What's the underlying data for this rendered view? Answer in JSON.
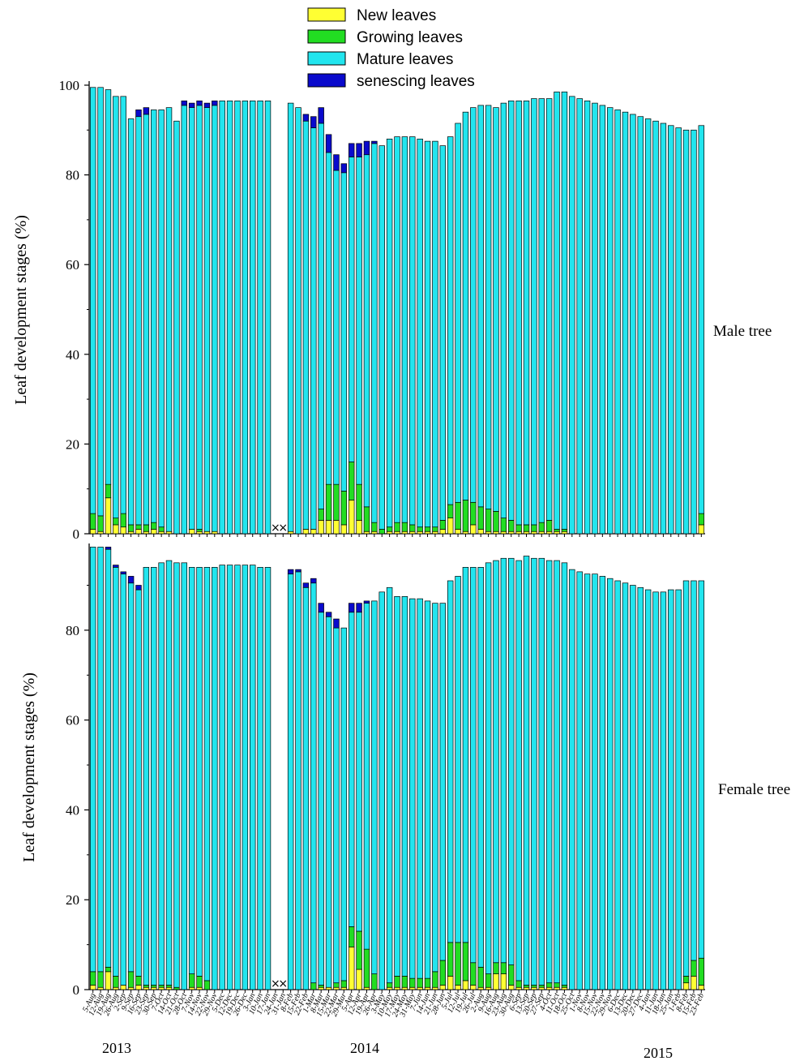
{
  "colors": {
    "new": "#ffff33",
    "growing": "#22dd22",
    "mature": "#22e5ee",
    "senescing": "#0a0acc"
  },
  "chart_data": {
    "type": "bar",
    "stacked": true,
    "legend": {
      "position": "top-center",
      "entries": [
        "New leaves",
        "Growing leaves",
        "Mature leaves",
        "senescing leaves"
      ]
    },
    "ylabel": "Leaf development stages (%)",
    "ylim": [
      0,
      100
    ],
    "yticks": [
      0,
      20,
      40,
      60,
      80,
      100
    ],
    "years": [
      "2013",
      "2014",
      "2015"
    ],
    "missing_marker": "×",
    "dates": [
      "5-Aug",
      "12-Aug",
      "19-Aug",
      "26-Aug",
      "2-Sep",
      "9-Sep",
      "16-Sep",
      "23-Sep",
      "30-Sep",
      "7-Oct",
      "14-Oct",
      "21-Oct",
      "28-Oct",
      "7-Nov",
      "14-Nov",
      "22-Nov",
      "29-Nov",
      "5-Dec",
      "12-Dec",
      "19-Dec",
      "26-Dec",
      "3-Jan",
      "10-Jan",
      "17-Jan",
      "24-Jan",
      "31-Jan",
      "8-Feb",
      "15-Feb",
      "22-Feb",
      "1-Mar",
      "8-Mar",
      "15-Mar",
      "22-Mar",
      "29-Mar",
      "5-Apr",
      "12-Apr",
      "19-Apr",
      "26-Apr",
      "3-May",
      "10-May",
      "17-May",
      "24-May",
      "31-May",
      "7-Jun",
      "14-Jun",
      "21-Jun",
      "28-Jun",
      "5-Jul",
      "12-Jul",
      "19-Jul",
      "26-Jul",
      "2-Aug",
      "9-Aug",
      "16-Aug",
      "23-Aug",
      "30-Aug",
      "6-Sep",
      "13-Sep",
      "20-Sep",
      "27-Sep",
      "4-Oct",
      "11-Oct",
      "18-Oct",
      "25-Oct",
      "1-Nov",
      "8-Nov",
      "15-Nov",
      "22-Nov",
      "29-Nov",
      "6-Dec",
      "13-Dec",
      "20-Dec",
      "27-Dec",
      "4-Jan",
      "11-Jan",
      "18-Jan",
      "25-Jan",
      "1-Feb",
      "8-Feb",
      "15-Feb",
      "23-Feb"
    ],
    "date_labels": [
      "5-Aug",
      "12-Aug",
      "19-Aug",
      "26-Aug",
      "2-Sep",
      "9-Sep",
      "16-Sep",
      "23-Sep",
      "30-Sep",
      "7-Oct",
      "14-Oct",
      "21-Oct",
      "28-Oct",
      "7-Nov",
      "14-Nov",
      "22-Nov",
      "29-Nov",
      "5-Dec",
      "12-Dec",
      "19-Dec",
      "26-Dec",
      "3-Jan",
      "10-Jan",
      "17-Jan",
      "24-Jan",
      "31-Jan",
      "8-Feb",
      "15-Feb",
      "22-Feb",
      "1-Mar",
      "8-Mar",
      "15-Mar",
      "22-Mar",
      "29-Mar",
      "5-Apr",
      "12-Apr",
      "19-Apr",
      "26-Apr",
      "3-May",
      "10-May",
      "17-May",
      "24-May",
      "31-May",
      "7-Jun",
      "14-Jun",
      "21-Jun",
      "28-Jun",
      "5-Jul",
      "12-Jul",
      "19-Jul",
      "26-Jul",
      "2-Aug",
      "9-Aug",
      "16-Aug",
      "23-Aug",
      "30-Aug",
      "6-Sep",
      "13-Sep",
      "20-Sep",
      "27-Sep",
      "4-Oct",
      "11-Oct",
      "18-Oct",
      "25-Oct",
      "1-Nov",
      "8-Nov",
      "15-Nov",
      "22-Nov",
      "29-Nov",
      "6-Dec",
      "13-Dec",
      "20-Dec",
      "27-Dec",
      "4-Jan",
      "11-Jan",
      "18-Jan",
      "25-Jan",
      "1-Feb",
      "8-Feb",
      "15-Feb",
      "23-Feb"
    ],
    "panels": [
      {
        "label": "Male tree",
        "missing": [
          24,
          25
        ],
        "series": [
          {
            "name": "New leaves",
            "values": [
              1,
              0.5,
              8,
              2,
              1.5,
              0.5,
              1,
              0.5,
              1,
              0.5,
              0.5,
              0,
              0,
              1,
              0.5,
              0.5,
              0.5,
              0,
              0,
              0,
              0,
              0,
              0,
              0,
              null,
              null,
              0.5,
              0,
              1,
              1,
              3,
              3,
              3,
              2,
              7.5,
              3,
              0.5,
              0.5,
              0,
              0.5,
              0.5,
              0.5,
              0.5,
              0.5,
              0.5,
              0.5,
              1,
              3.5,
              1,
              0.5,
              2,
              1,
              0.5,
              0.5,
              0.5,
              0.5,
              0.5,
              0.5,
              0.5,
              0.5,
              0.5,
              0.5,
              0.5,
              0,
              0,
              0,
              0,
              0,
              0,
              0,
              0,
              0,
              0,
              0,
              0,
              0,
              0,
              0,
              0,
              0,
              2
            ]
          },
          {
            "name": "Growing leaves",
            "values": [
              3.5,
              3.5,
              3,
              1.5,
              3,
              1.5,
              1,
              1.5,
              1.5,
              1,
              0,
              0,
              0,
              0,
              0.5,
              0,
              0,
              0,
              0,
              0,
              0,
              0,
              0,
              0,
              null,
              null,
              0,
              0,
              0,
              0,
              2.5,
              8,
              8,
              7.5,
              8.5,
              8,
              5.5,
              2,
              1,
              1,
              2,
              2,
              1.5,
              1,
              1,
              1,
              2,
              3,
              6,
              7,
              5,
              5,
              5,
              4.5,
              3,
              2.5,
              1.5,
              1.5,
              1.5,
              2,
              2.5,
              0.5,
              0.5,
              0,
              0,
              0,
              0,
              0,
              0,
              0,
              0,
              0,
              0,
              0,
              0,
              0,
              0,
              0,
              0,
              0,
              2.5
            ]
          },
          {
            "name": "Mature leaves",
            "values": [
              95,
              95.5,
              88,
              94,
              93,
              90.5,
              91,
              91.5,
              92,
              93,
              94.5,
              92,
              95.5,
              94,
              94.5,
              94.5,
              95,
              96.5,
              96.5,
              96.5,
              96.5,
              96.5,
              96.5,
              96.5,
              null,
              null,
              95.5,
              95,
              91,
              89.5,
              86,
              74,
              70,
              71,
              68,
              73,
              78.5,
              84.5,
              85.5,
              86.5,
              86,
              86,
              86.5,
              86.5,
              86,
              86,
              83.5,
              82,
              84.5,
              86.5,
              88,
              89.5,
              90,
              90,
              92.5,
              93.5,
              94.5,
              94.5,
              95,
              94.5,
              94,
              97.5,
              97.5,
              97.5,
              97,
              96.5,
              96,
              95.5,
              95,
              94.5,
              94,
              93.5,
              93,
              92.5,
              92,
              91.5,
              91,
              90.5,
              90,
              90,
              86.5
            ]
          },
          {
            "name": "senescing leaves",
            "values": [
              0,
              0,
              0,
              0,
              0,
              0,
              1.5,
              1.5,
              0,
              0,
              0,
              0,
              1,
              1,
              1,
              1,
              1,
              0,
              0,
              0,
              0,
              0,
              0,
              0,
              null,
              null,
              0,
              0,
              1.5,
              2.5,
              3.5,
              4,
              3.5,
              2,
              3,
              3,
              3,
              0.5,
              0,
              0,
              0,
              0,
              0,
              0,
              0,
              0,
              0,
              0,
              0,
              0,
              0,
              0,
              0,
              0,
              0,
              0,
              0,
              0,
              0,
              0,
              0,
              0,
              0,
              0,
              0,
              0,
              0,
              0,
              0,
              0,
              0,
              0,
              0,
              0,
              0,
              0,
              0,
              0,
              0,
              0,
              0
            ]
          }
        ]
      },
      {
        "label": "Female tree",
        "missing": [
          24,
          25
        ],
        "series": [
          {
            "name": "New leaves",
            "values": [
              1,
              0.5,
              4,
              0.5,
              1,
              0.5,
              1,
              0.5,
              0.5,
              0.5,
              0.5,
              0,
              0,
              0.5,
              0.5,
              0,
              0,
              0,
              0,
              0,
              0,
              0,
              0,
              0,
              null,
              null,
              0,
              0,
              0,
              0,
              0.5,
              0.5,
              0.5,
              0.5,
              9.5,
              4.5,
              0.5,
              0,
              0,
              0.5,
              0.5,
              0.5,
              0.5,
              0.5,
              0.5,
              0.5,
              1,
              3,
              1,
              2,
              1,
              0.5,
              0.5,
              3.5,
              3.5,
              1,
              0.5,
              0.5,
              0.5,
              0.5,
              0.5,
              0.5,
              0.5,
              0,
              0,
              0,
              0,
              0,
              0,
              0,
              0,
              0,
              0,
              0,
              0,
              0,
              0,
              0,
              1.5,
              3,
              1
            ]
          },
          {
            "name": "Growing leaves",
            "values": [
              3,
              3.5,
              1,
              2.5,
              0,
              3.5,
              2,
              0.5,
              0.5,
              0.5,
              0.5,
              0.5,
              0,
              3,
              2.5,
              2,
              0,
              0,
              0,
              0,
              0,
              0,
              0,
              0,
              null,
              null,
              0,
              0,
              0,
              1.5,
              0.5,
              0,
              1,
              1.5,
              4.5,
              8.5,
              8.5,
              3.5,
              0,
              1,
              2.5,
              2.5,
              2,
              2,
              2,
              3.5,
              5.5,
              7.5,
              9.5,
              8.5,
              5,
              4.5,
              3,
              2.5,
              2.5,
              4.5,
              1.5,
              0.5,
              0.5,
              0.5,
              1,
              1,
              0.5,
              0,
              0,
              0,
              0,
              0,
              0,
              0,
              0,
              0,
              0,
              0,
              0,
              0,
              0,
              0,
              1.5,
              3.5,
              6
            ]
          },
          {
            "name": "Mature leaves",
            "values": [
              94.5,
              94.5,
              93,
              91,
              91.5,
              86.5,
              86,
              93,
              93,
              94,
              94.5,
              94.5,
              95,
              90.5,
              91,
              92,
              94,
              94.5,
              94.5,
              94.5,
              94.5,
              94.5,
              94,
              94,
              null,
              null,
              92.5,
              93,
              89.5,
              89,
              83,
              82.5,
              79,
              78.5,
              70,
              71,
              77,
              83,
              88.5,
              88,
              84.5,
              84.5,
              84.5,
              84.5,
              84,
              82,
              79.5,
              80.5,
              81.5,
              83.5,
              88,
              89,
              91.5,
              89.5,
              90,
              90.5,
              93.5,
              95.5,
              95,
              95,
              94,
              94,
              94,
              93.5,
              93,
              92.5,
              92.5,
              92,
              91.5,
              91,
              90.5,
              90,
              89.5,
              89,
              88.5,
              88.5,
              89,
              89,
              88,
              84.5,
              84
            ]
          },
          {
            "name": "senescing leaves",
            "values": [
              0,
              0,
              0.5,
              0.5,
              0.5,
              1.5,
              1,
              0,
              0,
              0,
              0,
              0,
              0,
              0,
              0,
              0,
              0,
              0,
              0,
              0,
              0,
              0,
              0,
              0,
              null,
              null,
              1,
              0.5,
              1,
              1,
              2,
              1,
              2,
              0,
              2,
              2,
              0.5,
              0,
              0,
              0,
              0,
              0,
              0,
              0,
              0,
              0,
              0,
              0,
              0,
              0,
              0,
              0,
              0,
              0,
              0,
              0,
              0,
              0,
              0,
              0,
              0,
              0,
              0,
              0,
              0,
              0,
              0,
              0,
              0,
              0,
              0,
              0,
              0,
              0,
              0,
              0,
              0,
              0,
              0,
              0,
              0
            ]
          }
        ]
      }
    ]
  }
}
